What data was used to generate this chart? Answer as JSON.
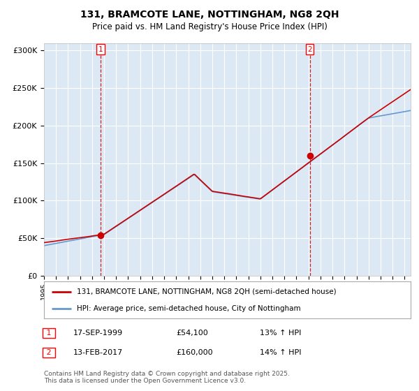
{
  "title_line1": "131, BRAMCOTE LANE, NOTTINGHAM, NG8 2QH",
  "title_line2": "Price paid vs. HM Land Registry's House Price Index (HPI)",
  "plot_bg_color": "#dce9f5",
  "fig_bg_color": "#ffffff",
  "red_line_color": "#cc0000",
  "blue_line_color": "#6699cc",
  "dashed_line_color": "#cc0000",
  "marker_color": "#cc0000",
  "ylim": [
    0,
    310000
  ],
  "yticks": [
    0,
    50000,
    100000,
    150000,
    200000,
    250000,
    300000
  ],
  "ytick_labels": [
    "£0",
    "£50K",
    "£100K",
    "£150K",
    "£200K",
    "£250K",
    "£300K"
  ],
  "purchase1_year": 1999.71,
  "purchase1_price": 54100,
  "purchase1_label": "1",
  "purchase2_year": 2017.11,
  "purchase2_price": 160000,
  "purchase2_label": "2",
  "legend_red": "131, BRAMCOTE LANE, NOTTINGHAM, NG8 2QH (semi-detached house)",
  "legend_blue": "HPI: Average price, semi-detached house, City of Nottingham",
  "annotation1_date": "17-SEP-1999",
  "annotation1_price": "£54,100",
  "annotation1_hpi": "13% ↑ HPI",
  "annotation2_date": "13-FEB-2017",
  "annotation2_price": "£160,000",
  "annotation2_hpi": "14% ↑ HPI",
  "copyright_text": "Contains HM Land Registry data © Crown copyright and database right 2025.\nThis data is licensed under the Open Government Licence v3.0."
}
